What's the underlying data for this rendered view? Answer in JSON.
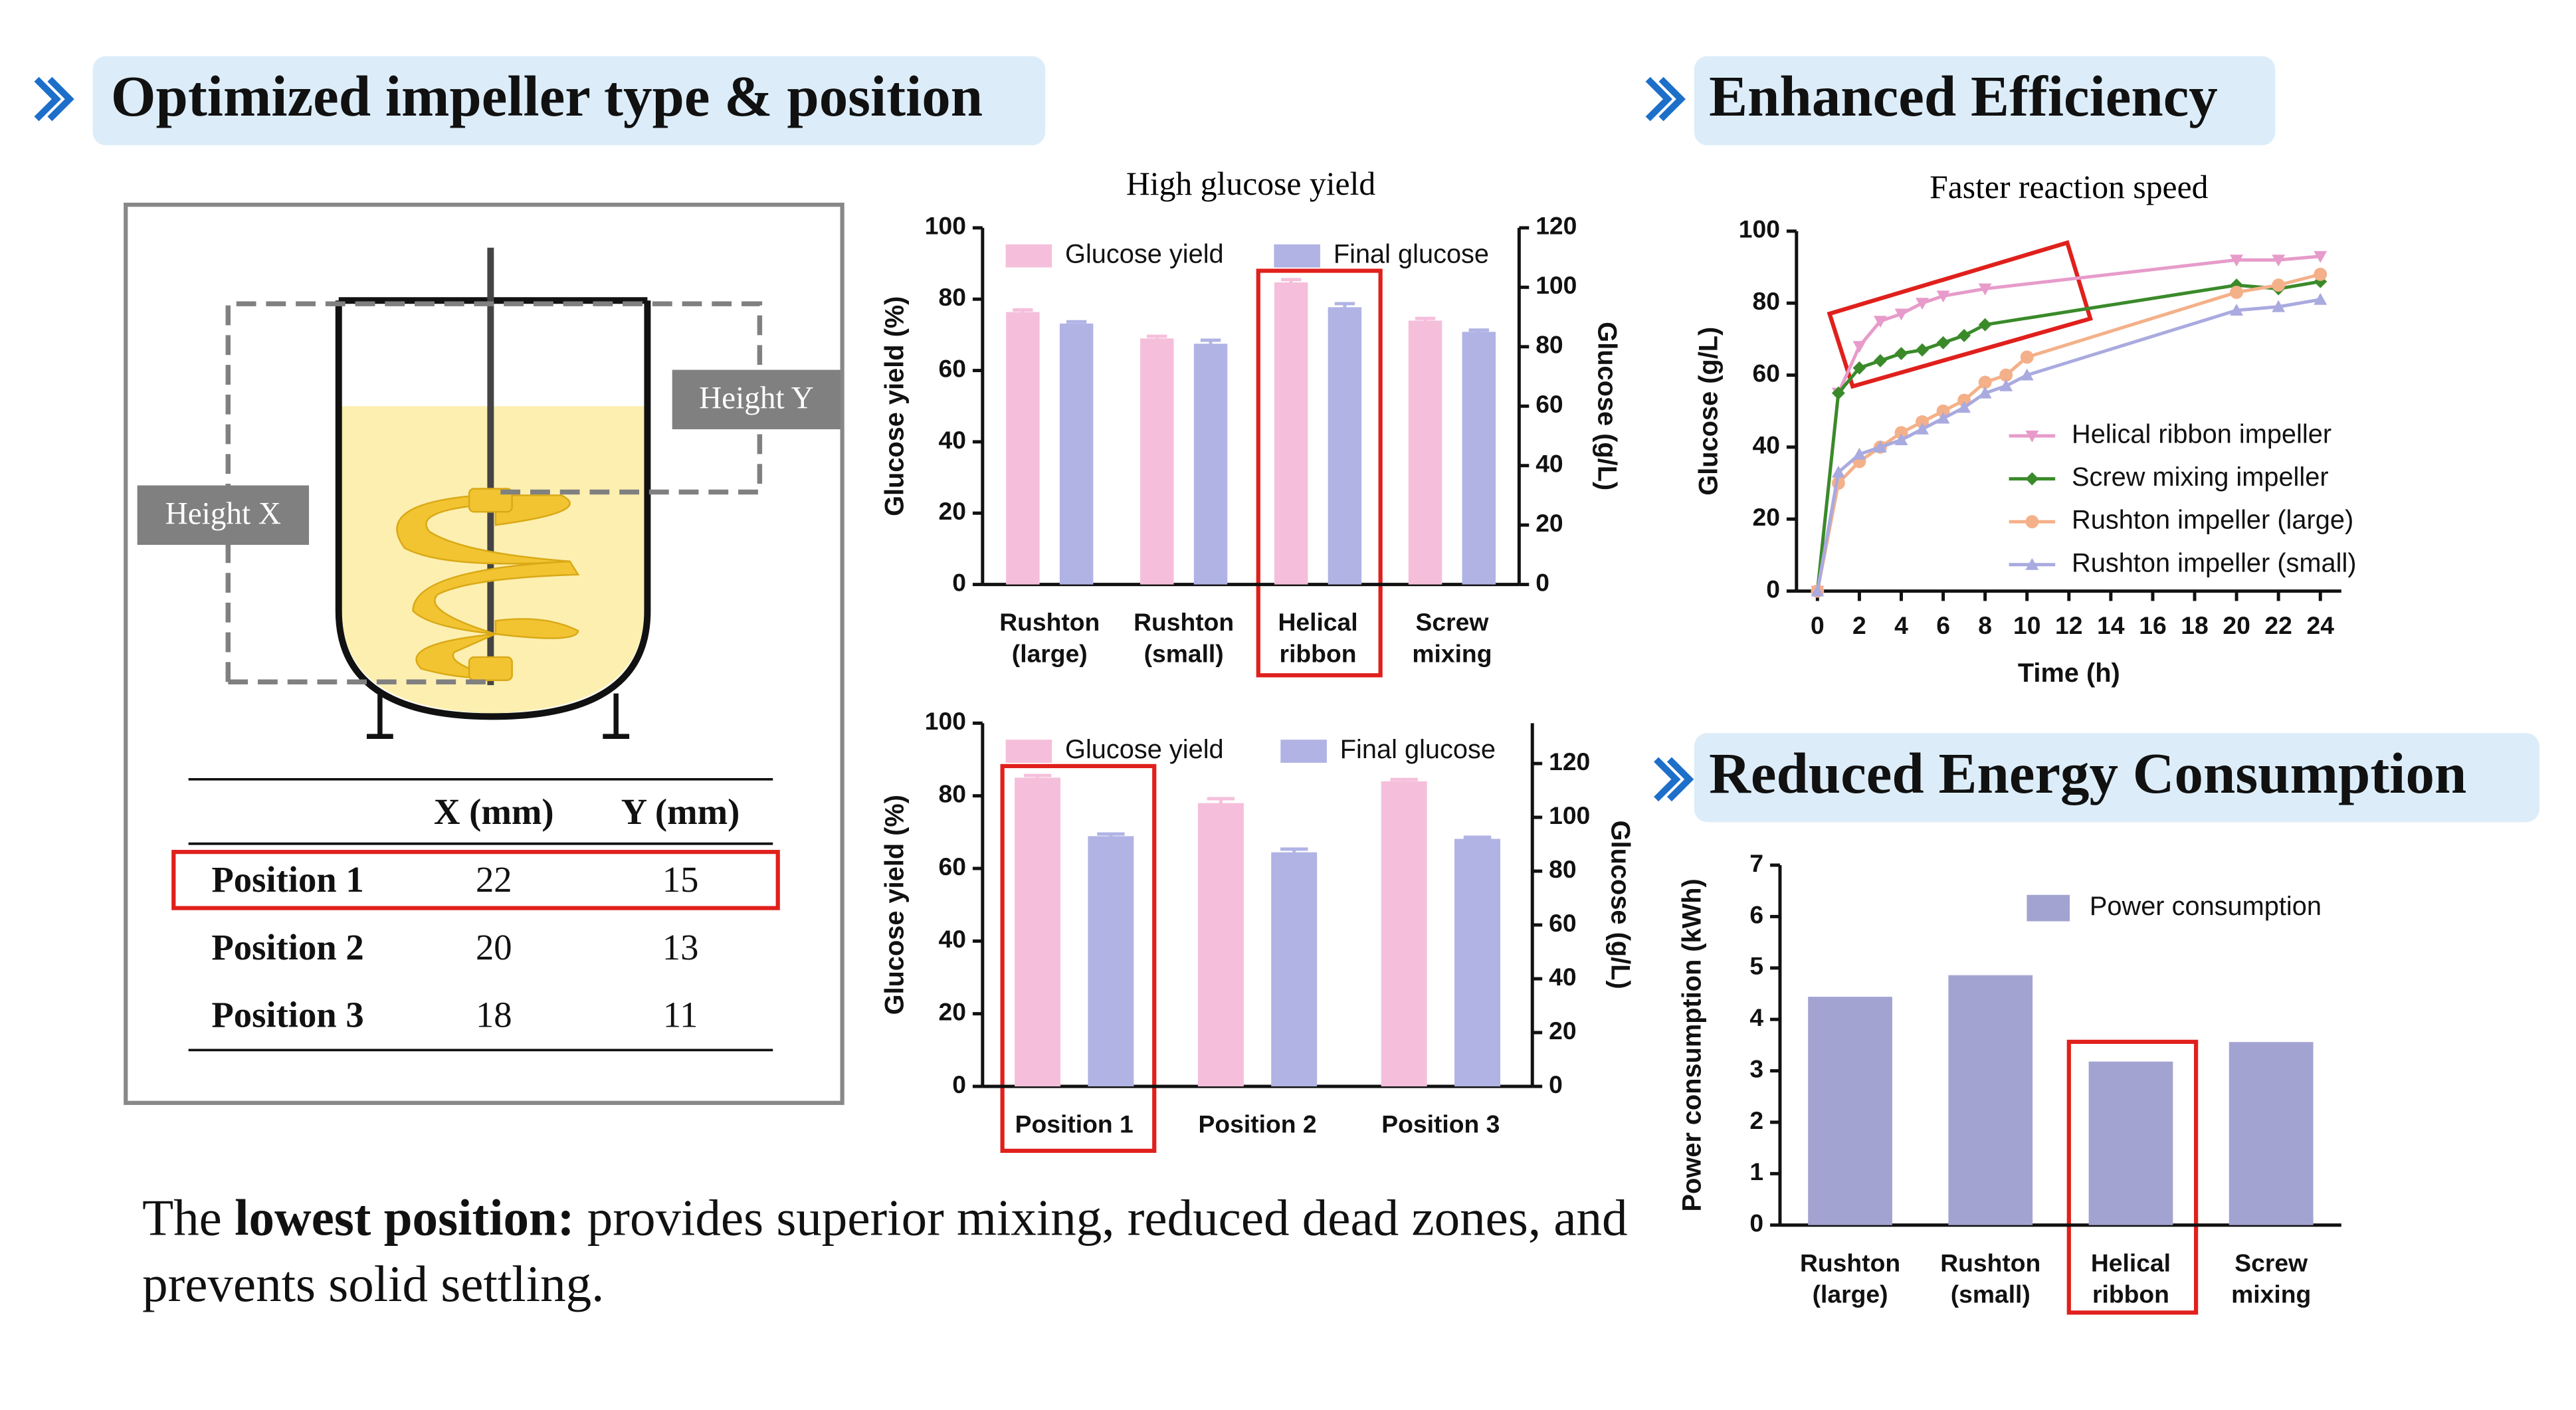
{
  "headings": [
    "Optimized impeller type & position",
    "Enhanced Efficiency",
    "Reduced Energy Consumption"
  ],
  "diagram": {
    "height_x": "Height X",
    "height_y": "Height Y"
  },
  "table": {
    "columns": [
      "X (mm)",
      "Y (mm)"
    ],
    "rows": [
      [
        "Position 1",
        22,
        15
      ],
      [
        "Position 2",
        20,
        13
      ],
      [
        "Position 3",
        18,
        11
      ]
    ]
  },
  "caption": {
    "lead": "The",
    "bold": "lowest position:",
    "rest": "provides superior mixing, reduced dead zones, and prevents solid settling."
  },
  "chart_data": [
    {
      "type": "bar",
      "title": "High glucose yield",
      "categories": [
        "Rushton (large)",
        "Rushton (small)",
        "Helical ribbon",
        "Screw mixing"
      ],
      "series": [
        {
          "name": "Glucose yield",
          "color": "#f5bfdb",
          "values": [
            76.4,
            69,
            84.7,
            74
          ],
          "errors": [
            0.6,
            0.6,
            0.8,
            0.6
          ]
        },
        {
          "name": "Final glucose",
          "color": "#b0b3e4",
          "axis": "y2",
          "values": [
            87.8,
            81,
            93.3,
            85
          ],
          "errors": [
            0.6,
            1.2,
            1.2,
            0.6
          ]
        }
      ],
      "ylabel": "Glucose yield (%)",
      "y2label": "Glucose (g/L)",
      "ylim": [
        0,
        100
      ],
      "yticks": [
        0,
        20,
        40,
        60,
        80,
        100
      ],
      "y2lim": [
        0,
        120
      ],
      "y2ticks": [
        0,
        20,
        40,
        60,
        80,
        100,
        120
      ],
      "legend": "top"
    },
    {
      "type": "bar",
      "categories": [
        "Position 1",
        "Position 2",
        "Position 3"
      ],
      "series": [
        {
          "name": "Glucose yield",
          "color": "#f5bfdb",
          "values": [
            85,
            78,
            84
          ],
          "errors": [
            0.6,
            1.2,
            0.5
          ]
        },
        {
          "name": "Final glucose",
          "color": "#b0b3e4",
          "axis": "y2",
          "values": [
            93,
            87,
            92
          ],
          "errors": [
            0.8,
            1.2,
            0.6
          ]
        }
      ],
      "ylabel": "Glucose yield (%)",
      "y2label": "Glucose (g/L)",
      "ylim": [
        0,
        100
      ],
      "yticks": [
        0,
        20,
        40,
        60,
        80,
        100
      ],
      "y2lim": [
        0,
        135
      ],
      "y2ticks": [
        0,
        20,
        40,
        60,
        80,
        100,
        120
      ],
      "legend": "top"
    },
    {
      "type": "line",
      "title": "Faster reaction speed",
      "xlabel": "Time (h)",
      "ylabel": "Glucose (g/L)",
      "xlim": [
        -1,
        25
      ],
      "xticks": [
        0,
        2,
        4,
        6,
        8,
        10,
        12,
        14,
        16,
        18,
        20,
        22,
        24
      ],
      "ylim": [
        0,
        100
      ],
      "yticks": [
        0,
        20,
        40,
        60,
        80,
        100
      ],
      "legend": "lower right",
      "series": [
        {
          "name": "Helical ribbon impeller",
          "color": "#e79bca",
          "marker": "triangle-down",
          "x": [
            0,
            1,
            2,
            3,
            4,
            5,
            6,
            8,
            20,
            22,
            24
          ],
          "values": [
            0,
            55,
            68,
            75,
            77,
            80,
            82,
            84,
            92,
            92,
            93
          ]
        },
        {
          "name": "Screw mixing impeller",
          "color": "#3a8a2a",
          "marker": "diamond",
          "x": [
            0,
            1,
            2,
            3,
            4,
            5,
            6,
            7,
            8,
            20,
            22,
            24
          ],
          "values": [
            0,
            55,
            62,
            64,
            66,
            67,
            69,
            71,
            74,
            85,
            84,
            86
          ]
        },
        {
          "name": "Rushton impeller (large)",
          "color": "#f4b089",
          "marker": "circle",
          "x": [
            0,
            1,
            2,
            3,
            4,
            5,
            6,
            7,
            8,
            9,
            10,
            20,
            22,
            24
          ],
          "values": [
            0,
            30,
            36,
            40,
            44,
            47,
            50,
            53,
            58,
            60,
            65,
            83,
            85,
            88
          ]
        },
        {
          "name": "Rushton impeller (small)",
          "color": "#a9aadf",
          "marker": "triangle-up",
          "x": [
            0,
            1,
            2,
            3,
            4,
            5,
            6,
            7,
            8,
            9,
            10,
            20,
            22,
            24
          ],
          "values": [
            0,
            33,
            38,
            40,
            42,
            45,
            48,
            51,
            55,
            57,
            60,
            78,
            79,
            81
          ]
        }
      ]
    },
    {
      "type": "bar",
      "categories": [
        "Rushton (large)",
        "Rushton (small)",
        "Helical ribbon",
        "Screw mixing"
      ],
      "series": [
        {
          "name": "Power consumption",
          "color": "#a3a3d2",
          "values": [
            4.44,
            4.86,
            3.18,
            3.56
          ]
        }
      ],
      "ylabel": "Power consumption (kWh)",
      "ylim": [
        0,
        7
      ],
      "yticks": [
        0,
        1,
        2,
        3,
        4,
        5,
        6,
        7
      ],
      "legend": "top right"
    }
  ]
}
